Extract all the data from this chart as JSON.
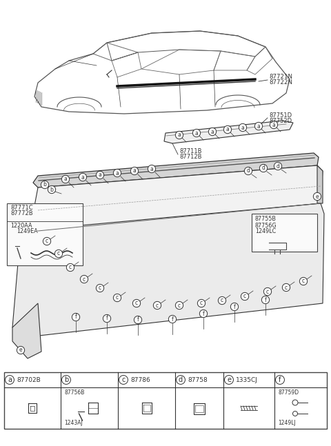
{
  "bg_color": "#ffffff",
  "lc": "#333333",
  "car_label1": "87721N",
  "car_label2": "87722N",
  "label_87771C": "87771C",
  "label_87772B": "87772B",
  "label_1220AA": "1220AA",
  "label_1249EA": "1249EA",
  "label_87711B": "87711B",
  "label_87712B": "87712B",
  "label_87751D": "87751D",
  "label_87752D": "87752D",
  "label_87755B": "87755B",
  "label_87756G": "87756G",
  "label_1249LC": "1249LC",
  "leg_a": "87702B",
  "leg_b1": "87756B",
  "leg_b2": "1243AJ",
  "leg_c": "87786",
  "leg_d": "87758",
  "leg_e": "1335CJ",
  "leg_f1": "87759D",
  "leg_f2": "1249LJ"
}
